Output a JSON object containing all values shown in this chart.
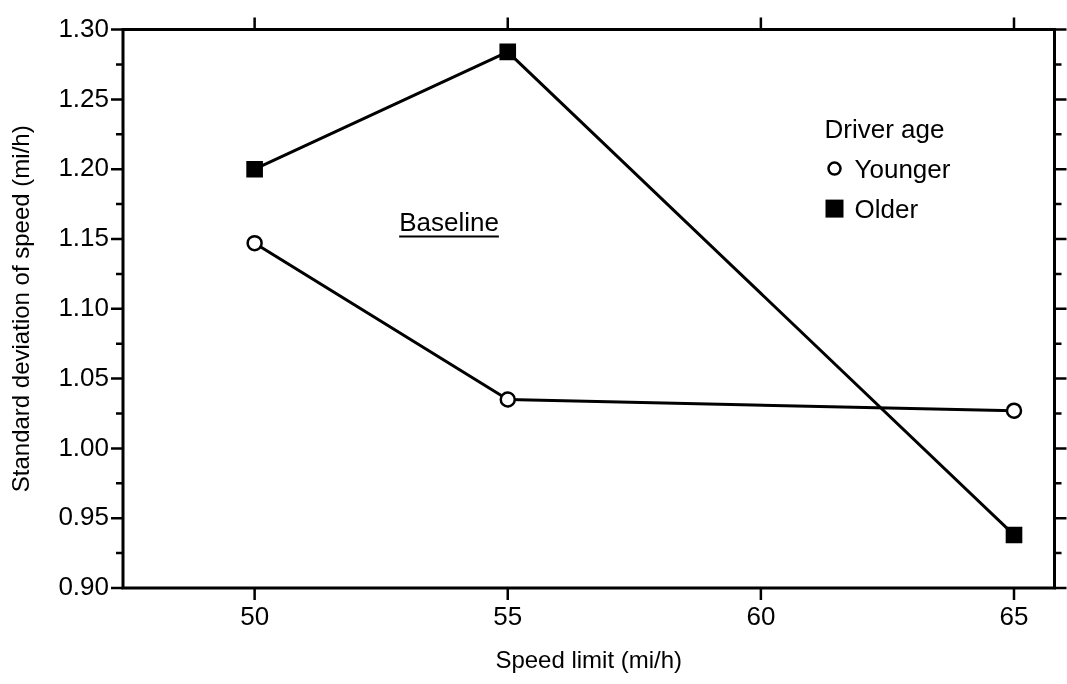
{
  "chart_data": {
    "type": "line",
    "xlabel": "Speed limit (mi/h)",
    "ylabel": "Standard deviation of speed (mi/h)",
    "legend_title": "Driver age",
    "legend": "top right",
    "annotations": [
      "Baseline"
    ],
    "x": [
      50,
      55,
      65
    ],
    "series": [
      {
        "name": "Younger",
        "color": "#000000",
        "marker": "circle",
        "values": [
          1.147,
          1.035,
          1.027
        ]
      },
      {
        "name": "Older",
        "color": "#000000",
        "marker": "square",
        "values": [
          1.2,
          1.284,
          0.938
        ]
      }
    ],
    "xlim": [
      47.4,
      65.8
    ],
    "xticks": [
      50,
      55,
      60,
      65
    ],
    "ylim": [
      0.9,
      1.3
    ],
    "yticks": [
      {
        "value": 0.9,
        "label": "0.90"
      },
      {
        "value": 0.925,
        "label": null
      },
      {
        "value": 0.95,
        "label": "0.95"
      },
      {
        "value": 0.975,
        "label": null
      },
      {
        "value": 1.0,
        "label": "1.00"
      },
      {
        "value": 1.025,
        "label": null
      },
      {
        "value": 1.05,
        "label": "1.05"
      },
      {
        "value": 1.075,
        "label": null
      },
      {
        "value": 1.1,
        "label": "1.10"
      },
      {
        "value": 1.125,
        "label": null
      },
      {
        "value": 1.15,
        "label": "1.15"
      },
      {
        "value": 1.175,
        "label": null
      },
      {
        "value": 1.2,
        "label": "1.20"
      },
      {
        "value": 1.225,
        "label": null
      },
      {
        "value": 1.25,
        "label": "1.25"
      },
      {
        "value": 1.275,
        "label": null
      },
      {
        "value": 1.3,
        "label": "1.30"
      }
    ],
    "grid": false
  }
}
